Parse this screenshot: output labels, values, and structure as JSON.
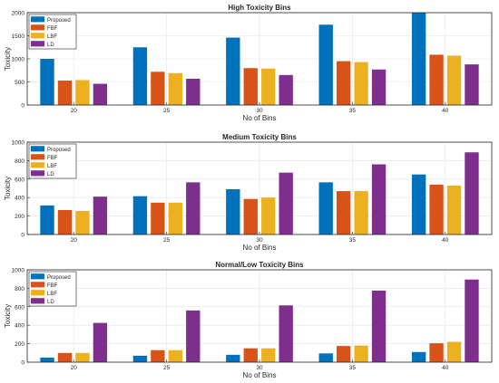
{
  "colors": {
    "proposed": "#0072BD",
    "fbf": "#D95319",
    "lbf": "#EDB120",
    "ld": "#7E2F8E"
  },
  "chart_data": [
    {
      "type": "bar",
      "title": "High Toxicity Bins",
      "xlabel": "No of Bins",
      "ylabel": "Toxicity",
      "categories": [
        "20",
        "25",
        "30",
        "35",
        "40"
      ],
      "ylim": [
        0,
        2000
      ],
      "yticks": [
        "0",
        "500",
        "1000",
        "1500",
        "2000"
      ],
      "grid": true,
      "legend": "top-left",
      "series": [
        {
          "name": "Proposed",
          "color": "#0072BD",
          "values": [
            1000,
            1250,
            1460,
            1740,
            2000
          ]
        },
        {
          "name": "FBF",
          "color": "#D95319",
          "values": [
            530,
            720,
            800,
            950,
            1090
          ]
        },
        {
          "name": "LBF",
          "color": "#EDB120",
          "values": [
            540,
            690,
            790,
            930,
            1070
          ]
        },
        {
          "name": "LD",
          "color": "#7E2F8E",
          "values": [
            460,
            570,
            650,
            770,
            880
          ]
        }
      ]
    },
    {
      "type": "bar",
      "title": "Medium Toxicity Bins",
      "xlabel": "No of Bins",
      "ylabel": "Toxicity",
      "categories": [
        "20",
        "25",
        "30",
        "35",
        "40"
      ],
      "ylim": [
        0,
        1000
      ],
      "yticks": [
        "0",
        "200",
        "400",
        "600",
        "800",
        "1000"
      ],
      "grid": true,
      "legend": "top-left",
      "series": [
        {
          "name": "Proposed",
          "color": "#0072BD",
          "values": [
            315,
            415,
            490,
            565,
            650
          ]
        },
        {
          "name": "FBF",
          "color": "#D95319",
          "values": [
            265,
            345,
            385,
            470,
            540
          ]
        },
        {
          "name": "LBF",
          "color": "#EDB120",
          "values": [
            255,
            345,
            400,
            470,
            530
          ]
        },
        {
          "name": "LD",
          "color": "#7E2F8E",
          "values": [
            410,
            565,
            670,
            760,
            890
          ]
        }
      ]
    },
    {
      "type": "bar",
      "title": "Normal/Low Toxicity Bins",
      "xlabel": "No of Bins",
      "ylabel": "Toxicity",
      "categories": [
        "20",
        "25",
        "30",
        "35",
        "40"
      ],
      "ylim": [
        0,
        1000
      ],
      "yticks": [
        "0",
        "200",
        "400",
        "600",
        "800",
        "1000"
      ],
      "grid": true,
      "legend": "top-left",
      "series": [
        {
          "name": "Proposed",
          "color": "#0072BD",
          "values": [
            50,
            70,
            80,
            95,
            110
          ]
        },
        {
          "name": "FBF",
          "color": "#D95319",
          "values": [
            100,
            130,
            150,
            175,
            205
          ]
        },
        {
          "name": "LBF",
          "color": "#EDB120",
          "values": [
            100,
            130,
            150,
            180,
            220
          ]
        },
        {
          "name": "LD",
          "color": "#7E2F8E",
          "values": [
            425,
            560,
            615,
            775,
            895
          ]
        }
      ]
    }
  ]
}
